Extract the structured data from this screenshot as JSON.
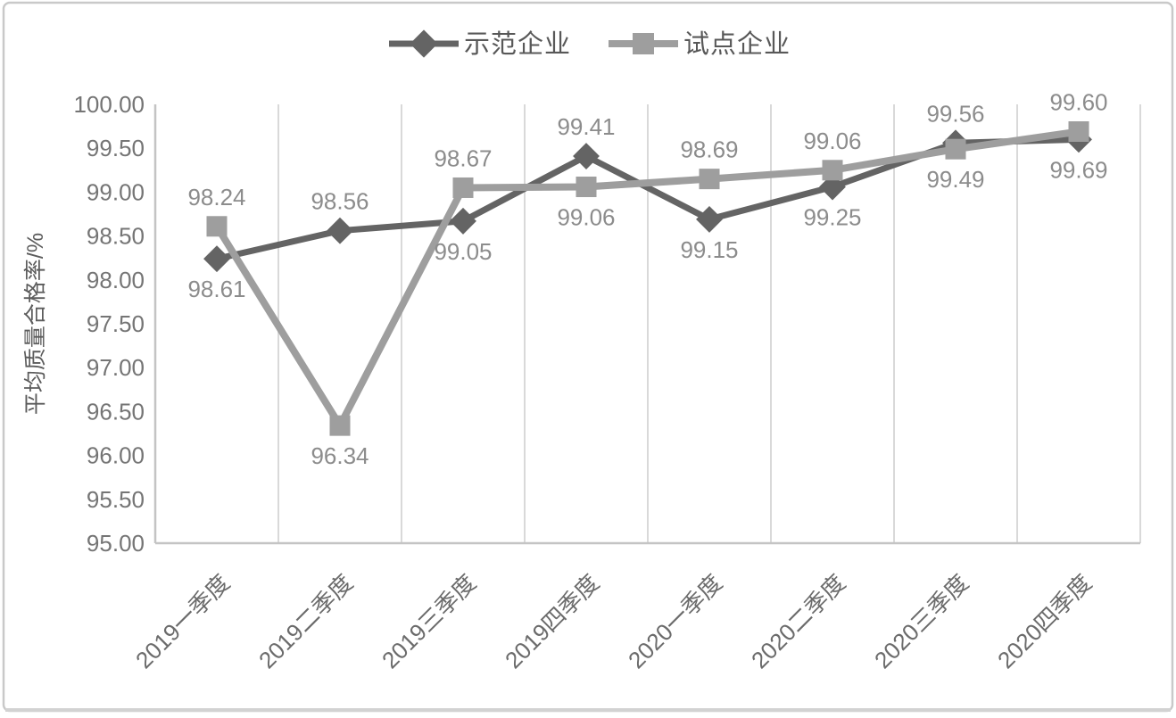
{
  "chart_data": {
    "type": "line",
    "title": "",
    "ylabel": "平均质量合格率/%",
    "xlabel": "",
    "categories": [
      "2019一季度",
      "2019二季度",
      "2019三季度",
      "2019四季度",
      "2020一季度",
      "2020二季度",
      "2020三季度",
      "2020四季度"
    ],
    "series": [
      {
        "name": "示范企业",
        "marker": "diamond",
        "color": "#646464",
        "line_width": 7,
        "label_position": "above",
        "values": [
          98.24,
          98.56,
          98.67,
          99.41,
          98.69,
          99.06,
          99.56,
          99.6
        ]
      },
      {
        "name": "试点企业",
        "marker": "square",
        "color": "#9e9e9e",
        "line_width": 8,
        "label_position": "below",
        "values": [
          98.61,
          96.34,
          99.05,
          99.06,
          99.15,
          99.25,
          99.49,
          99.69
        ]
      }
    ],
    "ylim": [
      95.0,
      100.0
    ],
    "ytick_step": 0.5,
    "ytick_labels": [
      "95.00",
      "95.50",
      "96.00",
      "96.50",
      "97.00",
      "97.50",
      "98.00",
      "98.50",
      "99.00",
      "99.50",
      "100.00"
    ],
    "grid": "vertical-only",
    "legend_position": "top",
    "data_labels_shown": true
  },
  "colors": {
    "background": "#ffffff",
    "frame_border": "#c9c9c9",
    "frame_border_bottom": "#d2d2d2",
    "gridline": "#d9d9d9",
    "axis_line": "#c4c4c4",
    "ytick_text": "#757575",
    "xtick_text": "#6b6b6b",
    "data_label_text": "#8c8c8c",
    "legend_text": "#585858",
    "axis_title_text": "#5c5c5c"
  }
}
